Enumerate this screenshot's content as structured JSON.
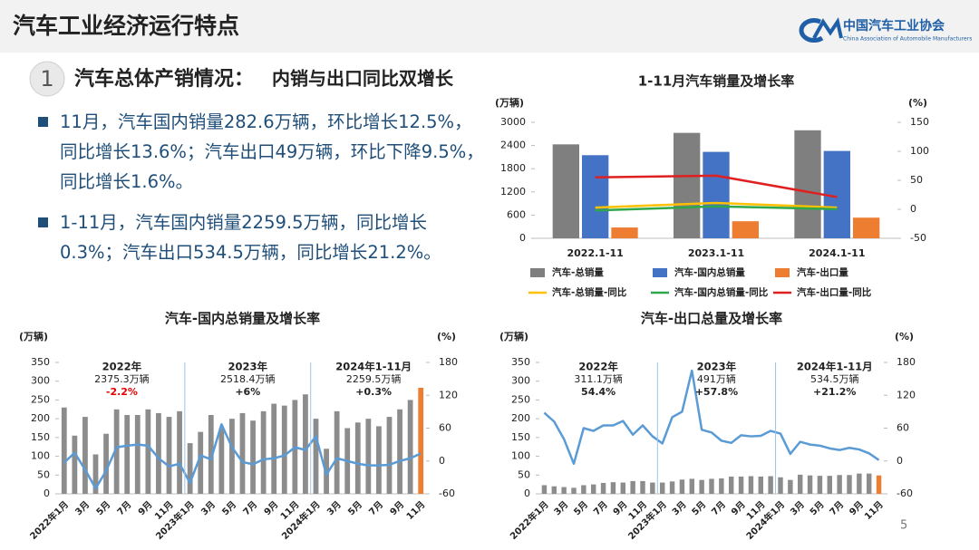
{
  "header": {
    "title": "汽车工业经济运行特点",
    "logo_cn": "中国汽车工业协会",
    "logo_en": "China Association of Automobile Manufacturers"
  },
  "section": {
    "number": "1",
    "title": "汽车总体产销情况：",
    "subtitle": "内销与出口同比双增长"
  },
  "bullets": [
    "11月，汽车国内销量282.6万辆，环比增长12.5%，同比增长13.6%；汽车出口49万辆，环比下降9.5%，同比增长1.6%。",
    "1-11月，汽车国内销量2259.5万辆，同比增长0.3%；汽车出口534.5万辆，同比增长21.2%。"
  ],
  "page_number": "5",
  "chart_data": [
    {
      "type": "combo",
      "title": "1-11月汽车销量及增长率",
      "y_label": "(万辆)",
      "y2_label": "(%)",
      "categories": [
        "2022.1-11",
        "2023.1-11",
        "2024.1-11"
      ],
      "ylim": [
        0,
        3000
      ],
      "yticks": [
        0,
        600,
        1200,
        1800,
        2400,
        3000
      ],
      "y2lim": [
        -50,
        150
      ],
      "y2ticks": [
        -50,
        0,
        50,
        100,
        150
      ],
      "legend": "bottom",
      "series": [
        {
          "name": "汽车-总销量",
          "type": "bar",
          "color": "#7f7f7f",
          "values": [
            2430,
            2727,
            2794
          ]
        },
        {
          "name": "汽车-国内总销量",
          "type": "bar",
          "color": "#4472c4",
          "values": [
            2150,
            2236,
            2259.5
          ]
        },
        {
          "name": "汽车-出口量",
          "type": "bar",
          "color": "#ed7d31",
          "values": [
            280,
            441,
            534.5
          ]
        },
        {
          "name": "汽车-总销量-同比",
          "type": "line",
          "axis": "y2",
          "color": "#ffc000",
          "values": [
            3,
            11,
            3
          ]
        },
        {
          "name": "汽车-国内总销量-同比",
          "type": "line",
          "axis": "y2",
          "color": "#2ea84a",
          "values": [
            -2,
            5,
            0.3
          ]
        },
        {
          "name": "汽车-出口量-同比",
          "type": "line",
          "axis": "y2",
          "color": "#e02020",
          "values": [
            55,
            58,
            21.2
          ]
        }
      ]
    },
    {
      "type": "combo",
      "title": "汽车-国内总销量及增长率",
      "y_label": "(万辆)",
      "y2_label": "(%)",
      "categories": [
        "2022年1月",
        null,
        "3月",
        null,
        "5月",
        null,
        "7月",
        null,
        "9月",
        null,
        "11月",
        null,
        "2023年1月",
        null,
        "3月",
        null,
        "5月",
        null,
        "7月",
        null,
        "9月",
        null,
        "11月",
        null,
        "2024年1月",
        null,
        "3月",
        null,
        "5月",
        null,
        "7月",
        null,
        "9月",
        null,
        "11月"
      ],
      "ylim": [
        0,
        350
      ],
      "yticks": [
        0,
        50,
        100,
        150,
        200,
        250,
        300,
        350
      ],
      "y2lim": [
        -60,
        180
      ],
      "y2ticks": [
        -60,
        0,
        60,
        120,
        180
      ],
      "annotations": [
        {
          "year": "2022年",
          "total": "2375.3万辆",
          "growth": "-2.2%",
          "growth_color": "#e60000"
        },
        {
          "year": "2023年",
          "total": "2518.4万辆",
          "growth": "+6%"
        },
        {
          "year": "2024年1-11月",
          "total": "2259.5万辆",
          "growth": "+0.3%"
        }
      ],
      "series": [
        {
          "type": "bar",
          "color": "#8c8c8c",
          "last_color": "#ed7d31",
          "values": [
            230,
            155,
            205,
            105,
            160,
            225,
            210,
            210,
            225,
            215,
            205,
            220,
            135,
            165,
            210,
            175,
            200,
            215,
            195,
            220,
            240,
            235,
            250,
            265,
            200,
            120,
            220,
            175,
            190,
            200,
            180,
            205,
            225,
            250,
            282.6
          ]
        },
        {
          "type": "line",
          "axis": "y2",
          "color": "#5b9bd5",
          "values": [
            -3,
            15,
            -16,
            -50,
            -18,
            25,
            28,
            30,
            28,
            5,
            -10,
            -5,
            -40,
            10,
            3,
            67,
            25,
            -2,
            -6,
            3,
            5,
            10,
            25,
            20,
            45,
            -25,
            5,
            0,
            -5,
            -8,
            -8,
            -7,
            0,
            5,
            13.6
          ]
        }
      ]
    },
    {
      "type": "combo",
      "title": "汽车-出口总量及增长率",
      "y_label": "(万辆)",
      "y2_label": "(%)",
      "categories": [
        "2022年1月",
        null,
        "3月",
        null,
        "5月",
        null,
        "7月",
        null,
        "9月",
        null,
        "11月",
        null,
        "2023年1月",
        null,
        "3月",
        null,
        "5月",
        null,
        "7月",
        null,
        "9月",
        null,
        "11月",
        null,
        "2024年1月",
        null,
        "3月",
        null,
        "5月",
        null,
        "7月",
        null,
        "9月",
        null,
        "11月"
      ],
      "ylim": [
        0,
        350
      ],
      "yticks": [
        0,
        50,
        100,
        150,
        200,
        250,
        300,
        350
      ],
      "y2lim": [
        -60,
        180
      ],
      "y2ticks": [
        -60,
        0,
        60,
        120,
        180
      ],
      "annotations": [
        {
          "year": "2022年",
          "total": "311.1万辆",
          "growth": "54.4%"
        },
        {
          "year": "2023年",
          "total": "491万辆",
          "growth": "+57.8%"
        },
        {
          "year": "2024年1-11月",
          "total": "534.5万辆",
          "growth": "+21.2%"
        }
      ],
      "series": [
        {
          "type": "bar",
          "color": "#8c8c8c",
          "last_color": "#ed7d31",
          "values": [
            23,
            20,
            18,
            16,
            23,
            25,
            29,
            31,
            30,
            34,
            34,
            30,
            30,
            33,
            38,
            40,
            37,
            40,
            41,
            46,
            46,
            47,
            46,
            47,
            44,
            37,
            51,
            49,
            48,
            48,
            50,
            50,
            54,
            54,
            49
          ]
        },
        {
          "type": "line",
          "axis": "y2",
          "color": "#5b9bd5",
          "values": [
            88,
            72,
            40,
            -5,
            60,
            55,
            65,
            65,
            73,
            48,
            65,
            45,
            32,
            80,
            90,
            165,
            57,
            52,
            37,
            33,
            47,
            45,
            46,
            55,
            50,
            13,
            35,
            30,
            28,
            23,
            20,
            24,
            21,
            14,
            1.6
          ]
        }
      ]
    }
  ]
}
